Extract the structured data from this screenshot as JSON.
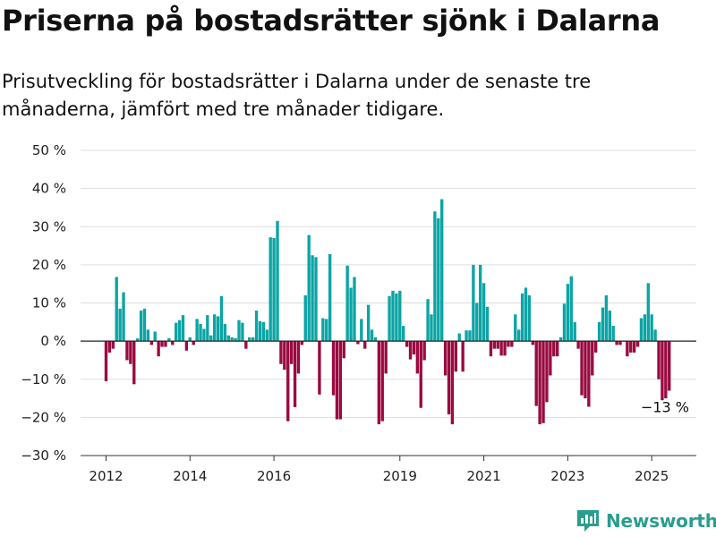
{
  "title": "Priserna på bostadsrätter sjönk i Dalarna",
  "subtitle": "Prisutveckling för bostadsrätter i Dalarna under de senaste tre månaderna, jämfört med tre månader tidigare.",
  "brand": {
    "name": "Newsworthy",
    "icon": "bar-chart-logo-icon",
    "color": "#2a9d8f"
  },
  "colors": {
    "positive": "#0ca4a5",
    "negative": "#990a40",
    "grid": "#dddddd",
    "zero": "#222222"
  },
  "chart_data": {
    "type": "bar",
    "title": "Priserna på bostadsrätter sjönk i Dalarna",
    "xlabel": "",
    "ylabel": "",
    "ylim": [
      -30,
      50
    ],
    "y_ticks": [
      -30,
      -20,
      -10,
      0,
      10,
      20,
      30,
      40,
      50
    ],
    "y_tick_labels": [
      "−30 %",
      "−20 %",
      "−10 %",
      "0 %",
      "10 %",
      "20 %",
      "30 %",
      "40 %",
      "50 %"
    ],
    "x_tick_years": [
      2012,
      2014,
      2016,
      2019,
      2021,
      2023,
      2025
    ],
    "x_tick_labels": [
      "2012",
      "2014",
      "2016",
      "2019",
      "2021",
      "2023",
      "2025"
    ],
    "grid": true,
    "start": "2012-01",
    "frequency": "monthly",
    "values": [
      -10.5,
      -3,
      -2,
      16.8,
      8.5,
      12.8,
      -5,
      -6,
      -11.3,
      0.7,
      8,
      8.5,
      3,
      -1,
      2.5,
      -4,
      -1.5,
      -1.5,
      0.8,
      -1,
      4.8,
      5.5,
      6.8,
      -2.5,
      1,
      -1,
      5.8,
      4.5,
      3.2,
      6.8,
      1.5,
      7,
      6.5,
      11.8,
      4.5,
      1.5,
      1,
      0.8,
      5.5,
      4.8,
      -2,
      1,
      1,
      8,
      5.2,
      5,
      3,
      27.2,
      27,
      31.5,
      -6,
      -7.5,
      -21,
      -6,
      -17.3,
      -8.5,
      -1,
      12,
      27.8,
      22.5,
      22,
      -14,
      6,
      5.8,
      22.8,
      -14.2,
      -20.5,
      -20.5,
      -4.5,
      19.8,
      14,
      16.8,
      -0.8,
      5.8,
      -2,
      9.5,
      3,
      1,
      -21.8,
      -21,
      -8.5,
      11.8,
      13.2,
      12.5,
      13.2,
      4,
      -1.5,
      -4.8,
      -3.5,
      -8.5,
      -17.5,
      -5,
      11,
      7,
      34,
      32.2,
      37.2,
      -9,
      -19.2,
      -21.8,
      -8,
      2,
      -8,
      2.8,
      2.8,
      20,
      10,
      20,
      15.2,
      9,
      -4,
      -2,
      -2,
      -3.8,
      -3.8,
      -1.5,
      -1.5,
      7,
      3,
      12.5,
      14,
      12,
      -1,
      -17,
      -21.8,
      -21.5,
      -16,
      -9,
      -4,
      -4,
      1,
      9.8,
      15,
      17,
      5,
      -2,
      -14.2,
      -15,
      -17.2,
      -9,
      -3,
      5,
      8.8,
      12,
      8,
      4,
      -1,
      -1,
      0,
      -4,
      -3,
      -3,
      -1.5,
      6,
      7,
      15.2,
      7,
      3,
      -10,
      -15.5,
      -15,
      -13
    ],
    "annotations": [
      {
        "text": "−13 %",
        "value": -13,
        "series_point": "last"
      }
    ]
  }
}
